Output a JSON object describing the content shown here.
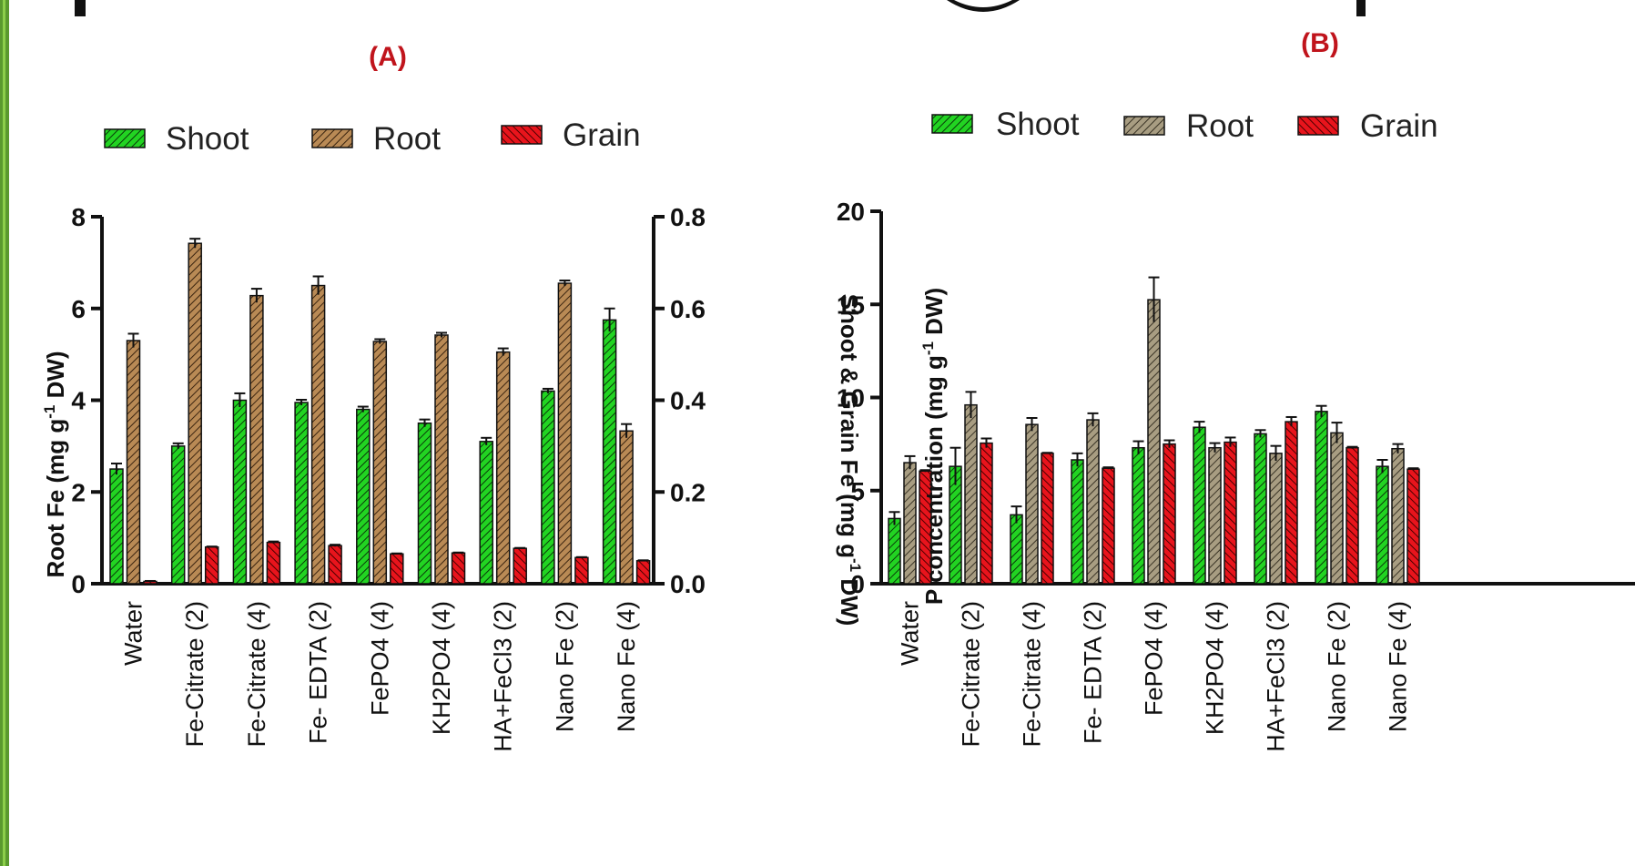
{
  "colors": {
    "shoot": "#22d422",
    "root": "#b98a55",
    "root_b": "#a89d82",
    "grain": "#e8141c",
    "panel_tag": "#c0141c",
    "strip": "#5a9a2e"
  },
  "chart_data": [
    {
      "type": "bar",
      "panel_label": "(A)",
      "categories": [
        "Water",
        "Fe-Citrate (2)",
        "Fe-Citrate (4)",
        "Fe- EDTA (2)",
        "FePO4 (4)",
        "KH2PO4 (4)",
        "HA+FeCl3 (2)",
        "Nano Fe (2)",
        "Nano Fe (4)"
      ],
      "legend": [
        "Shoot",
        "Root",
        "Grain"
      ],
      "series": [
        {
          "name": "Shoot",
          "axis": "right",
          "values": [
            0.25,
            0.3,
            0.4,
            0.395,
            0.38,
            0.35,
            0.31,
            0.42,
            0.575
          ],
          "errors": [
            0.012,
            0.006,
            0.015,
            0.006,
            0.006,
            0.008,
            0.008,
            0.005,
            0.025
          ]
        },
        {
          "name": "Root",
          "axis": "left",
          "values": [
            5.3,
            7.42,
            6.28,
            6.5,
            5.28,
            5.42,
            5.05,
            6.55,
            3.33
          ],
          "errors": [
            0.15,
            0.1,
            0.15,
            0.2,
            0.05,
            0.05,
            0.08,
            0.06,
            0.15
          ]
        },
        {
          "name": "Grain",
          "axis": "right",
          "values": [
            0.005,
            0.08,
            0.09,
            0.083,
            0.065,
            0.067,
            0.077,
            0.057,
            0.05
          ],
          "errors": [
            0.001,
            0.001,
            0.002,
            0.002,
            0.001,
            0.001,
            0.001,
            0.001,
            0.001
          ]
        }
      ],
      "y_left": {
        "label": "Root Fe (mg g",
        "label_sup": "-1",
        "label_end": " DW)",
        "ticks": [
          "0",
          "2",
          "4",
          "6",
          "8"
        ],
        "ylim": [
          0,
          8
        ]
      },
      "y_right": {
        "label": "Shoot & Grain Fe (mg g",
        "label_sup": "-1",
        "label_end": " DW)",
        "ticks": [
          "0.0",
          "0.2",
          "0.4",
          "0.6",
          "0.8"
        ],
        "ylim": [
          0,
          0.8
        ]
      },
      "grid": false,
      "legend_position": "top"
    },
    {
      "type": "bar",
      "panel_label": "(B)",
      "categories": [
        "Water",
        "Fe-Citrate (2)",
        "Fe-Citrate (4)",
        "Fe- EDTA (2)",
        "FePO4 (4)",
        "KH2PO4 (4)",
        "HA+FeCl3 (2)",
        "Nano Fe (2)",
        "Nano Fe (4)"
      ],
      "legend": [
        "Shoot",
        "Root",
        "Grain"
      ],
      "series": [
        {
          "name": "Shoot",
          "values": [
            3.5,
            6.3,
            3.7,
            6.65,
            7.3,
            8.4,
            8.05,
            9.25,
            6.3
          ],
          "errors": [
            0.35,
            1.0,
            0.45,
            0.35,
            0.35,
            0.3,
            0.2,
            0.3,
            0.35
          ]
        },
        {
          "name": "Root",
          "values": [
            6.5,
            9.6,
            8.55,
            8.8,
            15.25,
            7.3,
            7.0,
            8.1,
            7.25
          ],
          "errors": [
            0.35,
            0.7,
            0.35,
            0.35,
            1.2,
            0.25,
            0.4,
            0.55,
            0.25
          ]
        },
        {
          "name": "Grain",
          "values": [
            6.05,
            7.55,
            7.0,
            6.2,
            7.5,
            7.6,
            8.7,
            7.3,
            6.15
          ],
          "errors": [
            0.05,
            0.25,
            0.03,
            0.05,
            0.2,
            0.25,
            0.25,
            0.05,
            0.05
          ]
        }
      ],
      "y_left": {
        "label": "P concentration (mg g",
        "label_sup": "-1",
        "label_end": " DW)",
        "ticks": [
          "0",
          "5",
          "10",
          "15",
          "20"
        ],
        "ylim": [
          0,
          20
        ]
      },
      "grid": false,
      "legend_position": "top"
    }
  ]
}
